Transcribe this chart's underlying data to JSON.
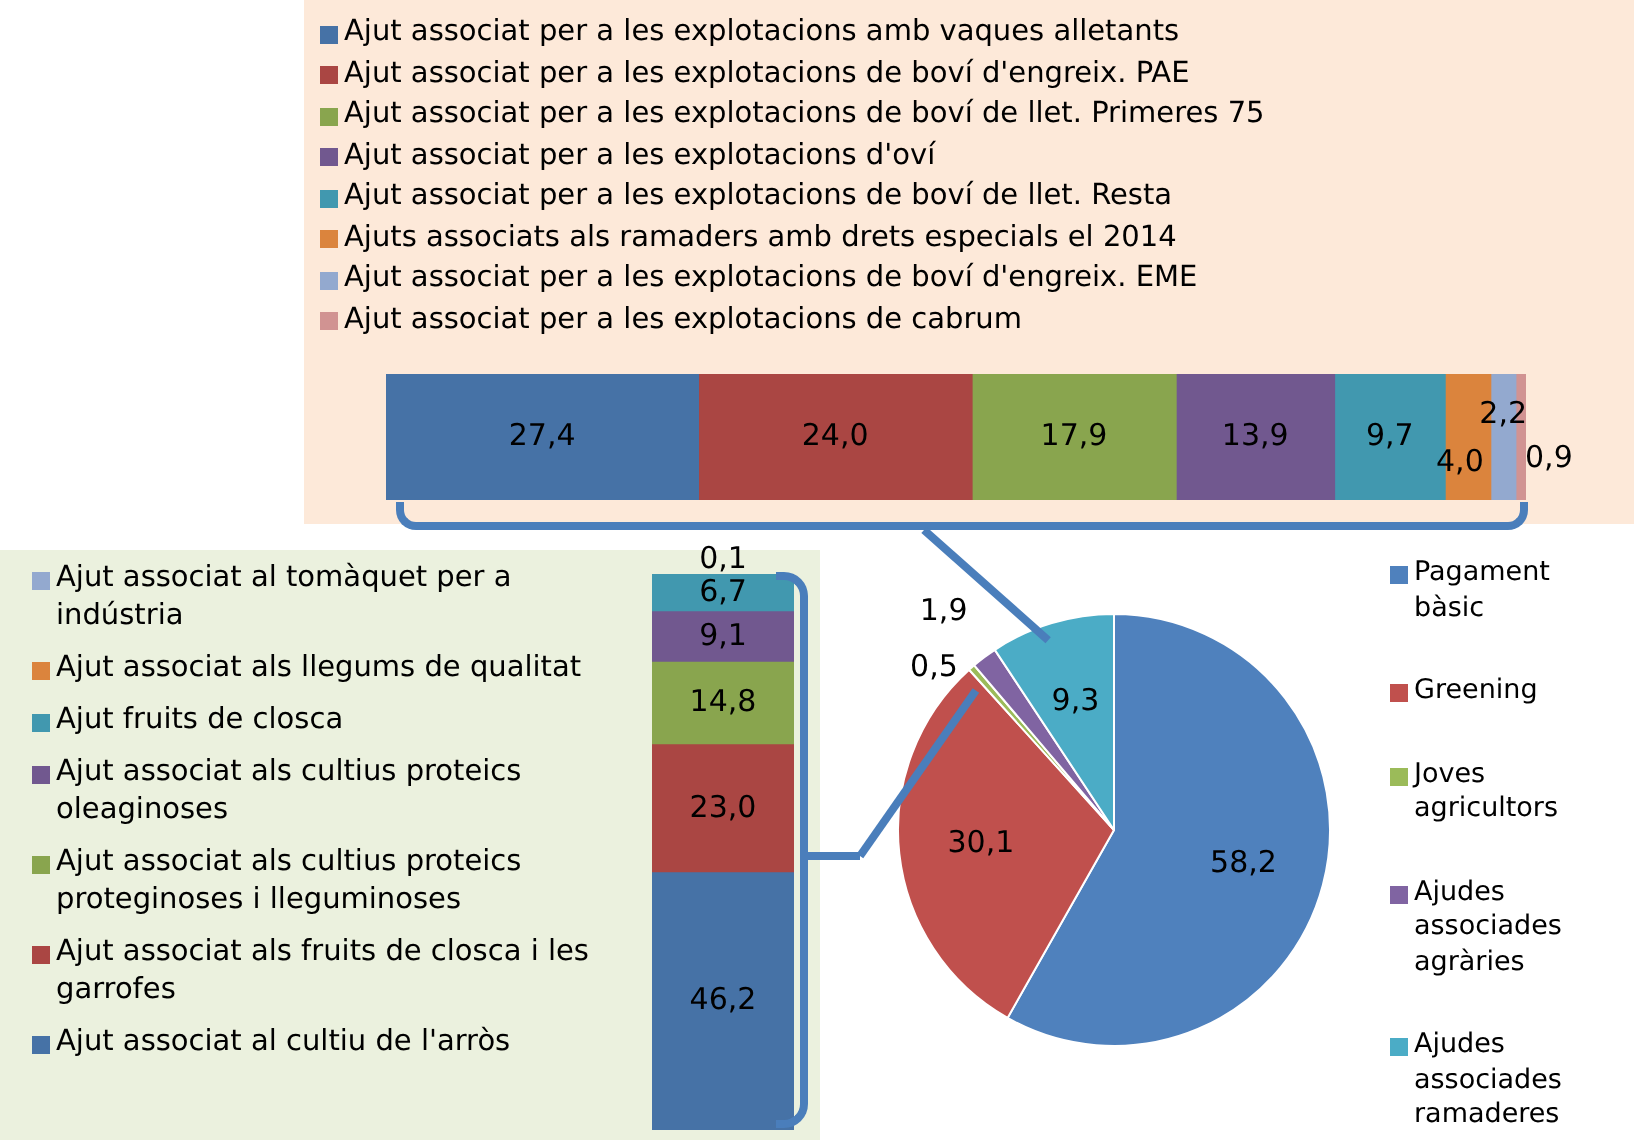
{
  "chart_data": [
    {
      "type": "bar",
      "orientation": "horizontal",
      "stacked": true,
      "legend": "top",
      "categories": [
        null
      ],
      "series": [
        {
          "name": "Ajut associat per a les explotacions amb vaques alletants",
          "color": "#4672a6",
          "values": [
            27.4
          ],
          "value_labels": [
            "27,4"
          ]
        },
        {
          "name": "Ajut associat per a les explotacions de boví d'engreix. PAE",
          "color": "#aa4643",
          "values": [
            24.0
          ],
          "value_labels": [
            "24,0"
          ]
        },
        {
          "name": "Ajut associat per a les explotacions de boví de llet. Primeres 75",
          "color": "#89a54e",
          "values": [
            17.9
          ],
          "value_labels": [
            "17,9"
          ]
        },
        {
          "name": "Ajut associat per a les explotacions d'oví",
          "color": "#71588f",
          "values": [
            13.9
          ],
          "value_labels": [
            "13,9"
          ]
        },
        {
          "name": "Ajut associat per a les explotacions de boví de llet. Resta",
          "color": "#4198af",
          "values": [
            9.7
          ],
          "value_labels": [
            "9,7"
          ]
        },
        {
          "name": "Ajuts associats als ramaders amb drets especials el 2014",
          "color": "#db843d",
          "values": [
            4.0
          ],
          "value_labels": [
            "4,0"
          ]
        },
        {
          "name": "Ajut associat per a les explotacions de boví d'engreix. EME",
          "color": "#93a9cf",
          "values": [
            2.2
          ],
          "value_labels": [
            "2,2"
          ]
        },
        {
          "name": "Ajut associat per a les explotacions de cabrum",
          "color": "#d19392",
          "values": [
            0.9
          ],
          "value_labels": [
            "0,9"
          ]
        }
      ]
    },
    {
      "type": "bar",
      "stacked": true,
      "legend": "left",
      "categories": [
        null
      ],
      "series": [
        {
          "name": "Ajut associat al cultiu de l'arròs",
          "color": "#4672a6",
          "values": [
            46.2
          ],
          "value_labels": [
            "46,2"
          ]
        },
        {
          "name": "Ajut associat als fruits de closca i les garrofes",
          "color": "#aa4643",
          "values": [
            23.0
          ],
          "value_labels": [
            "23,0"
          ]
        },
        {
          "name": "Ajut associat als cultius proteics proteginoses i lleguminoses",
          "color": "#89a54e",
          "values": [
            14.8
          ],
          "value_labels": [
            "14,8"
          ]
        },
        {
          "name": "Ajut associat als cultius proteics oleaginoses",
          "color": "#71588f",
          "values": [
            9.1
          ],
          "value_labels": [
            "9,1"
          ]
        },
        {
          "name": "Ajut fruits de closca",
          "color": "#4198af",
          "values": [
            6.7
          ],
          "value_labels": [
            "6,7"
          ]
        },
        {
          "name": "Ajut associat als llegums de qualitat",
          "color": "#db843d",
          "values": [
            0
          ],
          "value_labels": [
            null
          ]
        },
        {
          "name": "Ajut associat al tomàquet per a indústria",
          "color": "#93a9cf",
          "values": [
            0.1
          ],
          "value_labels": [
            "0,1"
          ]
        }
      ]
    },
    {
      "type": "pie",
      "legend": "right",
      "categories": [
        "Pagament bàsic",
        "Greening",
        "Joves agricultors",
        "Ajudes associades agràries",
        "Ajudes associades ramaderes"
      ],
      "values": [
        58.2,
        30.1,
        0.5,
        1.9,
        9.3
      ],
      "colors": [
        "#4f81bd",
        "#c0504d",
        "#9bbb59",
        "#8064a2",
        "#4bacc6"
      ],
      "value_labels": [
        "58,2",
        "30,1",
        "0,5",
        "1,9",
        "9,3"
      ]
    }
  ]
}
